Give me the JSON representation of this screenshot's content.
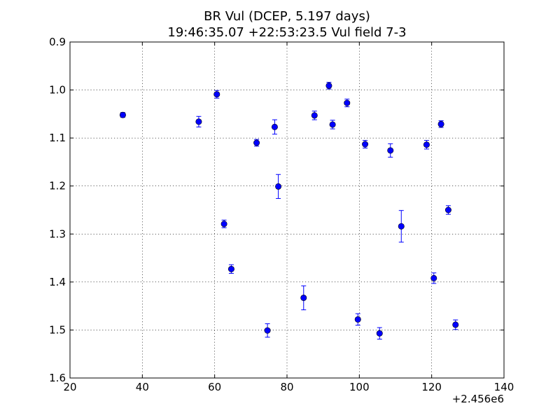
{
  "chart_data": {
    "type": "scatter",
    "title": "BR Vul (DCEP, 5.197 days)",
    "subtitle": "19:46:35.07 +22:53:23.5 Vul field 7-3",
    "xlabel": "",
    "ylabel": "",
    "x_offset_label": "+2.456e6",
    "xlim": [
      20,
      140
    ],
    "ylim": [
      0.9,
      1.6
    ],
    "y_inverted": true,
    "grid": true,
    "x_ticks": [
      20,
      40,
      60,
      80,
      100,
      120,
      140
    ],
    "x_tick_labels": [
      "20",
      "40",
      "60",
      "80",
      "100",
      "120",
      "140"
    ],
    "y_ticks": [
      0.9,
      1.0,
      1.1,
      1.2,
      1.3,
      1.4,
      1.5,
      1.6
    ],
    "y_tick_labels": [
      "0.9",
      "1.0",
      "1.1",
      "1.2",
      "1.3",
      "1.4",
      "1.5",
      "1.6"
    ],
    "colors": {
      "marker": "#0000ff",
      "errorbar": "#0000ff"
    },
    "points": [
      {
        "x": 34.6,
        "y": 1.052,
        "err": 0.005
      },
      {
        "x": 55.6,
        "y": 1.066,
        "err": 0.011
      },
      {
        "x": 60.6,
        "y": 1.009,
        "err": 0.008
      },
      {
        "x": 62.6,
        "y": 1.279,
        "err": 0.008
      },
      {
        "x": 64.6,
        "y": 1.373,
        "err": 0.009
      },
      {
        "x": 71.6,
        "y": 1.11,
        "err": 0.007
      },
      {
        "x": 74.6,
        "y": 1.501,
        "err": 0.014
      },
      {
        "x": 76.6,
        "y": 1.077,
        "err": 0.015
      },
      {
        "x": 77.6,
        "y": 1.201,
        "err": 0.025
      },
      {
        "x": 84.6,
        "y": 1.433,
        "err": 0.025
      },
      {
        "x": 87.6,
        "y": 1.053,
        "err": 0.009
      },
      {
        "x": 91.6,
        "y": 0.991,
        "err": 0.007
      },
      {
        "x": 92.6,
        "y": 1.072,
        "err": 0.009
      },
      {
        "x": 96.6,
        "y": 1.027,
        "err": 0.008
      },
      {
        "x": 99.6,
        "y": 1.478,
        "err": 0.012
      },
      {
        "x": 101.6,
        "y": 1.113,
        "err": 0.008
      },
      {
        "x": 105.6,
        "y": 1.507,
        "err": 0.012
      },
      {
        "x": 108.6,
        "y": 1.126,
        "err": 0.014
      },
      {
        "x": 111.6,
        "y": 1.284,
        "err": 0.033
      },
      {
        "x": 118.6,
        "y": 1.114,
        "err": 0.009
      },
      {
        "x": 120.6,
        "y": 1.392,
        "err": 0.011
      },
      {
        "x": 122.6,
        "y": 1.071,
        "err": 0.007
      },
      {
        "x": 124.6,
        "y": 1.25,
        "err": 0.009
      },
      {
        "x": 126.6,
        "y": 1.489,
        "err": 0.01
      }
    ]
  }
}
